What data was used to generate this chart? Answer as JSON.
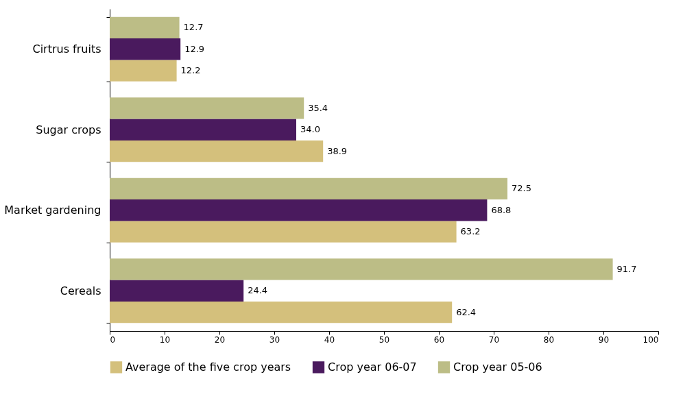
{
  "chart_data": {
    "type": "bar",
    "orientation": "horizontal",
    "categories": [
      "Cirtrus fruits",
      "Sugar crops",
      "Market gardening",
      "Cereals"
    ],
    "series": [
      {
        "name": "Average of the five crop years",
        "color": "#d4c07c",
        "values": [
          12.2,
          38.9,
          63.2,
          62.4
        ],
        "value_labels": [
          "12.2",
          "38.9",
          "63.2",
          "62.4"
        ]
      },
      {
        "name": "Crop year 06-07",
        "color": "#4a1a5e",
        "values": [
          12.9,
          34.0,
          68.8,
          24.4
        ],
        "value_labels": [
          "12.9",
          "34.0",
          "68.8",
          "24.4"
        ]
      },
      {
        "name": "Crop year 05-06",
        "color": "#bcbd86",
        "values": [
          12.7,
          35.4,
          72.5,
          91.7
        ],
        "value_labels": [
          "12.7",
          "35.4",
          "72.5",
          "91.7"
        ]
      }
    ],
    "xlim": [
      0,
      100
    ],
    "xticks": [
      0,
      10,
      20,
      30,
      40,
      50,
      60,
      70,
      80,
      90,
      100
    ],
    "grid": false,
    "legend": "bottom"
  }
}
